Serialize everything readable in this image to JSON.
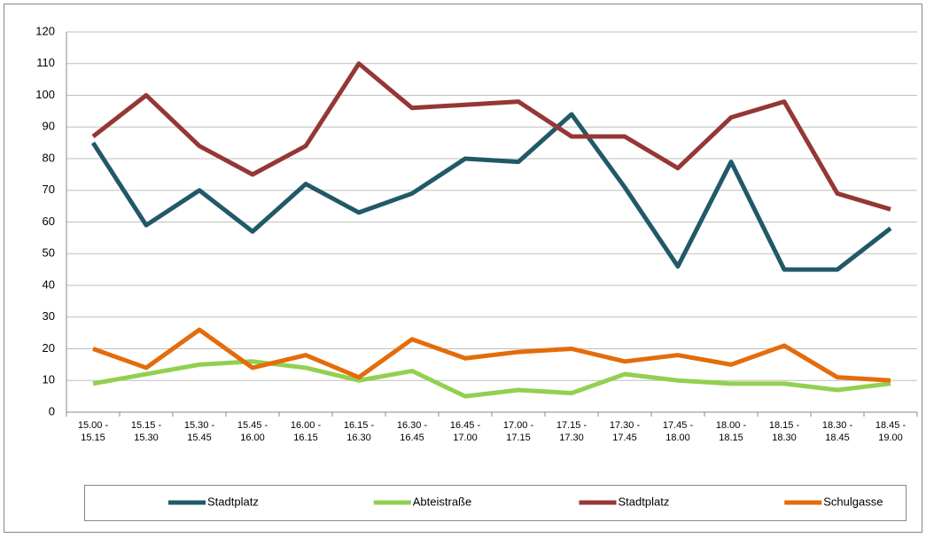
{
  "chart_data": {
    "type": "line",
    "categories": [
      "15.00 - 15.15",
      "15.15 - 15.30",
      "15.30 - 15.45",
      "15.45 - 16.00",
      "16.00 - 16.15",
      "16.15 - 16.30",
      "16.30 - 16.45",
      "16.45 - 17.00",
      "17.00 - 17.15",
      "17.15 - 17.30",
      "17.30 - 17.45",
      "17.45 - 18.00",
      "18.00 - 18.15",
      "18.15 - 18.30",
      "18.30 - 18.45",
      "18.45 - 19.00"
    ],
    "series": [
      {
        "name": "Stadtplatz",
        "color": "#215968",
        "values": [
          85,
          59,
          70,
          57,
          72,
          63,
          69,
          80,
          79,
          94,
          71,
          46,
          79,
          45,
          45,
          58
        ]
      },
      {
        "name": "Abteistraße",
        "color": "#92D050",
        "values": [
          9,
          12,
          15,
          16,
          14,
          10,
          13,
          5,
          7,
          6,
          12,
          10,
          9,
          9,
          7,
          9
        ]
      },
      {
        "name": "Stadtplatz",
        "color": "#953735",
        "values": [
          87,
          100,
          84,
          75,
          84,
          110,
          96,
          97,
          98,
          87,
          87,
          77,
          93,
          98,
          69,
          64
        ]
      },
      {
        "name": "Schulgasse",
        "color": "#E46C0A",
        "values": [
          20,
          14,
          26,
          14,
          18,
          11,
          23,
          17,
          19,
          20,
          16,
          18,
          15,
          21,
          11,
          10
        ]
      }
    ],
    "ylim": [
      0,
      120
    ],
    "yticks": [
      0,
      10,
      20,
      30,
      40,
      50,
      60,
      70,
      80,
      90,
      100,
      110,
      120
    ],
    "grid": true,
    "legend": "bottom"
  }
}
